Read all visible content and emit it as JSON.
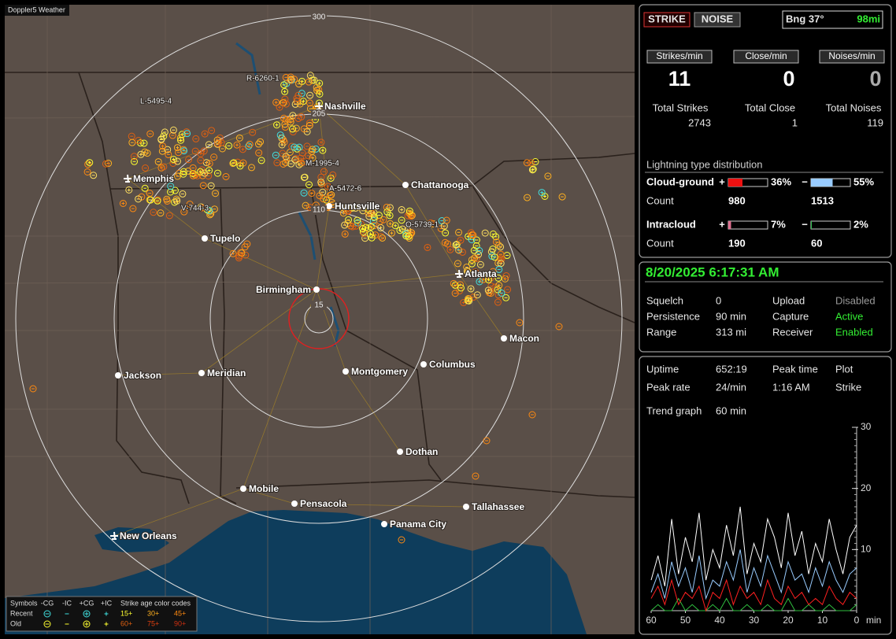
{
  "map": {
    "title": "Doppler5 Weather",
    "range_rings": [
      "300",
      "205",
      "110",
      "15"
    ],
    "cities": [
      "Nashville",
      "Memphis",
      "Chattanooga",
      "Huntsville",
      "Tupelo",
      "Atlanta",
      "Birmingham",
      "Macon",
      "Jackson",
      "Meridian",
      "Montgomery",
      "Columbus",
      "Dothan",
      "Mobile",
      "Pensacola",
      "Tallahassee",
      "Panama City",
      "New Orleans"
    ],
    "storm_cells": [
      "R-6260-1",
      "L-5495-4",
      "M-1995-4",
      "A-5472-6",
      "V-744-3",
      "O-5739-1"
    ],
    "legend": {
      "symbols_label": "Symbols",
      "symbol_types": [
        "-CG",
        "-IC",
        "+CG",
        "+IC"
      ],
      "age_label": "Strike age color codes",
      "rows": [
        {
          "label": "Recent",
          "ages": [
            "15+",
            "30+",
            "45+"
          ]
        },
        {
          "label": "Old",
          "ages": [
            "60+",
            "75+",
            "90+"
          ]
        }
      ]
    }
  },
  "panel": {
    "mode_buttons": [
      "STRIKE",
      "NOISE"
    ],
    "bearing": "Bng 37°",
    "distance": "98mi",
    "rates": [
      {
        "label": "Strikes/min",
        "value": 11
      },
      {
        "label": "Close/min",
        "value": 0
      },
      {
        "label": "Noises/min",
        "value": 0
      }
    ],
    "totals": [
      {
        "label": "Total Strikes",
        "value": 2743
      },
      {
        "label": "Total Close",
        "value": 1
      },
      {
        "label": "Total Noises",
        "value": 119
      }
    ],
    "distribution": {
      "title": "Lightning type distribution",
      "rows": [
        {
          "label": "Cloud-ground",
          "count_label": "Count",
          "positive": {
            "sign": "+",
            "percent": 36,
            "percent_label": "36%",
            "count": 980
          },
          "negative": {
            "sign": "−",
            "percent": 55,
            "percent_label": "55%",
            "count": 1513
          }
        },
        {
          "label": "Intracloud",
          "count_label": "Count",
          "positive": {
            "sign": "+",
            "percent": 7,
            "percent_label": "7%",
            "count": 190
          },
          "negative": {
            "sign": "−",
            "percent": 2,
            "percent_label": "2%",
            "count": 60
          }
        }
      ]
    }
  },
  "status": {
    "datetime": "8/20/2025 6:17:31 AM",
    "fields": [
      {
        "label": "Squelch",
        "value": "0"
      },
      {
        "label": "Persistence",
        "value": "90 min"
      },
      {
        "label": "Range",
        "value": "313 mi"
      },
      {
        "label": "Upload",
        "value": "Disabled"
      },
      {
        "label": "Capture",
        "value": "Active"
      },
      {
        "label": "Receiver",
        "value": "Enabled"
      }
    ]
  },
  "stats": {
    "uptime_label": "Uptime",
    "uptime": "652:19",
    "peak_rate_label": "Peak rate",
    "peak_rate": "24/min",
    "peak_time_label": "Peak time",
    "peak_time": "1:16 AM",
    "plot_label": "Plot",
    "plot": "Strike",
    "trend_label": "Trend graph",
    "trend_window": "60 min"
  },
  "chart_data": {
    "type": "line",
    "x": [
      60,
      58,
      56,
      54,
      52,
      50,
      48,
      46,
      44,
      42,
      40,
      38,
      36,
      34,
      32,
      30,
      28,
      26,
      24,
      22,
      20,
      18,
      16,
      14,
      12,
      10,
      8,
      6,
      4,
      2,
      0
    ],
    "xlim": [
      60,
      0
    ],
    "xticks": [
      60,
      50,
      40,
      30,
      20,
      10,
      0
    ],
    "xlabel": "min",
    "ylim": [
      0,
      30
    ],
    "yticks": [
      10,
      20,
      30
    ],
    "series": [
      {
        "name": "Total",
        "color": "#ffffff",
        "values": [
          5,
          9,
          4,
          15,
          6,
          12,
          8,
          16,
          5,
          10,
          7,
          14,
          9,
          17,
          6,
          11,
          8,
          15,
          12,
          7,
          16,
          9,
          13,
          6,
          11,
          8,
          15,
          10,
          6,
          12,
          14
        ]
      },
      {
        "name": "-CG",
        "color": "#99ccff",
        "values": [
          3,
          6,
          2,
          8,
          4,
          7,
          3,
          9,
          2,
          5,
          4,
          8,
          5,
          10,
          3,
          7,
          4,
          9,
          6,
          3,
          8,
          5,
          6,
          3,
          7,
          4,
          8,
          5,
          3,
          6,
          7
        ]
      },
      {
        "name": "+CG",
        "color": "#ff2020",
        "values": [
          2,
          4,
          1,
          5,
          1,
          3,
          2,
          4,
          0,
          3,
          2,
          5,
          1,
          4,
          2,
          3,
          1,
          5,
          2,
          1,
          4,
          2,
          3,
          1,
          2,
          1,
          4,
          2,
          1,
          3,
          2
        ]
      },
      {
        "name": "IC",
        "color": "#30c040",
        "values": [
          0,
          1,
          0,
          0,
          2,
          0,
          1,
          0,
          0,
          1,
          0,
          2,
          0,
          0,
          1,
          0,
          0,
          1,
          0,
          0,
          2,
          0,
          0,
          1,
          0,
          0,
          1,
          0,
          0,
          0,
          1
        ]
      }
    ]
  }
}
